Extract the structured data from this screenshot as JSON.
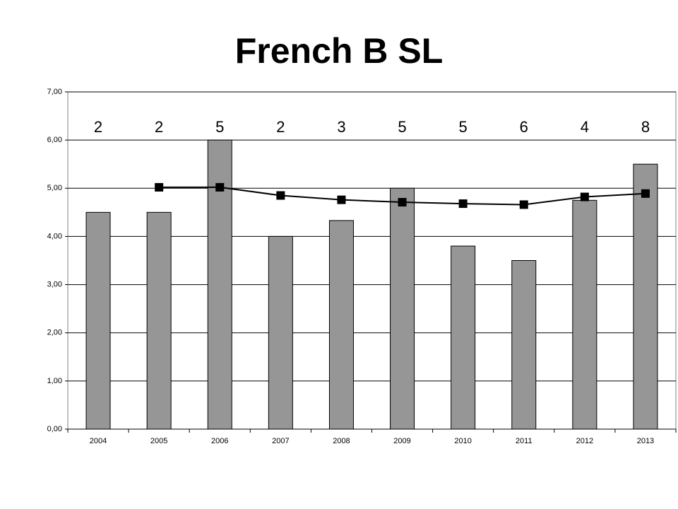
{
  "chart_data": {
    "type": "bar",
    "title": "French B SL",
    "categories": [
      "2004",
      "2005",
      "2006",
      "2007",
      "2008",
      "2009",
      "2010",
      "2011",
      "2012",
      "2013"
    ],
    "series": [
      {
        "type": "bar",
        "color": "#969696",
        "values": [
          4.5,
          4.5,
          6.0,
          4.0,
          4.33,
          5.0,
          3.8,
          3.5,
          4.75,
          5.5
        ]
      },
      {
        "type": "line",
        "color": "#000000",
        "values": [
          null,
          5.02,
          5.02,
          4.85,
          4.76,
          4.71,
          4.68,
          4.66,
          4.82,
          4.89
        ]
      }
    ],
    "annotations": [
      2,
      2,
      5,
      2,
      3,
      5,
      5,
      6,
      4,
      8
    ],
    "ylim": [
      0,
      7
    ],
    "yticks": [
      {
        "value": 0,
        "label": "0,00"
      },
      {
        "value": 1,
        "label": "1,00"
      },
      {
        "value": 2,
        "label": "2,00"
      },
      {
        "value": 3,
        "label": "3,00"
      },
      {
        "value": 4,
        "label": "4,00"
      },
      {
        "value": 5,
        "label": "5,00"
      },
      {
        "value": 6,
        "label": "6,00"
      },
      {
        "value": 7,
        "label": "7,00"
      }
    ],
    "grid": true
  }
}
